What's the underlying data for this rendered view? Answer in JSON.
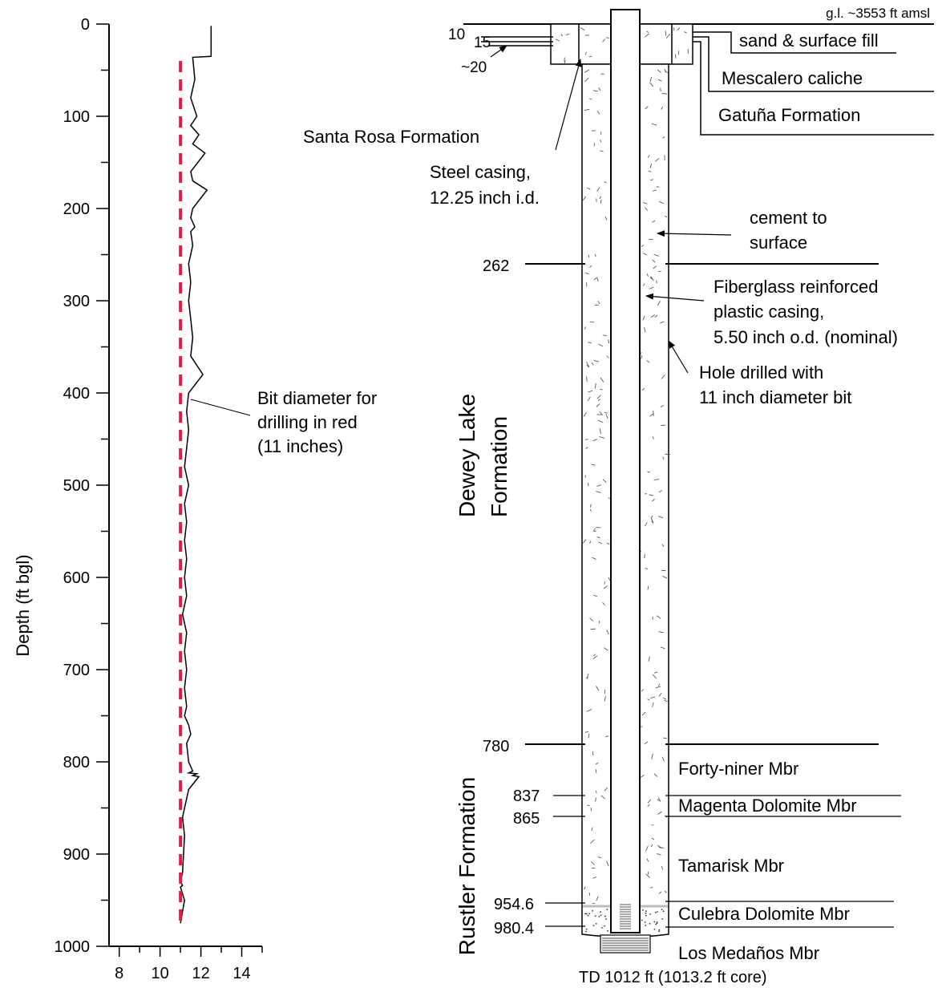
{
  "caliper_log": {
    "ylabel": "Depth (ft bgl)",
    "y_ticks": [
      "0",
      "100",
      "200",
      "300",
      "400",
      "500",
      "600",
      "700",
      "800",
      "900",
      "1000"
    ],
    "x_ticks": [
      "8",
      "10",
      "12",
      "14"
    ],
    "annotation_lines": [
      "Bit diameter for",
      "drilling in red",
      "(11 inches)"
    ],
    "bit_color": "#e8194a"
  },
  "chart_data": {
    "type": "line",
    "title": "",
    "xlabel": "",
    "ylabel": "Depth (ft bgl)",
    "xlim": [
      7.5,
      15
    ],
    "ylim": [
      1000,
      0
    ],
    "series": [
      {
        "name": "",
        "x": [
          12.5,
          12.5,
          11.6,
          11.7,
          11.5,
          11.8,
          11.5,
          11.9,
          11.6,
          12.2,
          11.5,
          11.6,
          12.3,
          11.6,
          11.5,
          11.7,
          11.5,
          11.6,
          11.4,
          11.5,
          11.4,
          11.5,
          11.6,
          11.5,
          12.1,
          11.4,
          11.3,
          11.4,
          11.3,
          11.2,
          11.4,
          11.2,
          11.3,
          11.2,
          11.3,
          11.2,
          11.3,
          11.1,
          11.3,
          11.2,
          11.3,
          11.2,
          11.3,
          11.2,
          11.4,
          11.5,
          11.3,
          11.4,
          11.6,
          11.4,
          11.8,
          11.6,
          11.9,
          11.4,
          11.1,
          11.2,
          11.1,
          11.0,
          11.1,
          11.0,
          11.2,
          11.0
        ],
        "y": [
          2,
          35,
          36,
          60,
          80,
          100,
          110,
          120,
          130,
          140,
          160,
          170,
          180,
          200,
          210,
          220,
          225,
          240,
          260,
          280,
          300,
          320,
          340,
          360,
          380,
          400,
          420,
          440,
          460,
          480,
          500,
          520,
          540,
          560,
          580,
          600,
          620,
          640,
          660,
          680,
          700,
          720,
          740,
          750,
          760,
          770,
          780,
          800,
          810,
          812,
          813,
          815,
          816,
          830,
          860,
          880,
          920,
          930,
          934,
          936,
          950,
          975
        ]
      },
      {
        "name": "",
        "x": [
          11,
          11
        ],
        "y": [
          40,
          975
        ]
      }
    ]
  },
  "well": {
    "surface_label": "g.l. ~3553 ft amsl",
    "depth_10": "10",
    "depth_15": "15",
    "depth_20": "~20",
    "depth_262": "262",
    "depth_780": "780",
    "depth_837": "837",
    "depth_865": "865",
    "depth_954": "954.6",
    "depth_980": "980.4",
    "sand_fill": "sand & surface fill",
    "mescalero": "Mescalero caliche",
    "gatuna": "Gatuña Formation",
    "santa_rosa": "Santa Rosa Formation",
    "steel_casing_1": "Steel casing,",
    "steel_casing_2": "12.25 inch i.d.",
    "cement_1": "cement to",
    "cement_2": "surface",
    "frp_1": "Fiberglass reinforced",
    "frp_2": "plastic casing,",
    "frp_3": "5.50 inch o.d. (nominal)",
    "hole_1": "Hole drilled with",
    "hole_2": "11 inch diameter bit",
    "dewey_1": "Dewey Lake",
    "dewey_2": "Formation",
    "rustler": "Rustler Formation",
    "forty_niner": "Forty-niner Mbr",
    "magenta": "Magenta Dolomite Mbr",
    "tamarisk": "Tamarisk Mbr",
    "culebra": "Culebra Dolomite Mbr",
    "los_medanos": "Los Medaños Mbr",
    "td": "TD 1012 ft (1013.2 ft core)"
  }
}
